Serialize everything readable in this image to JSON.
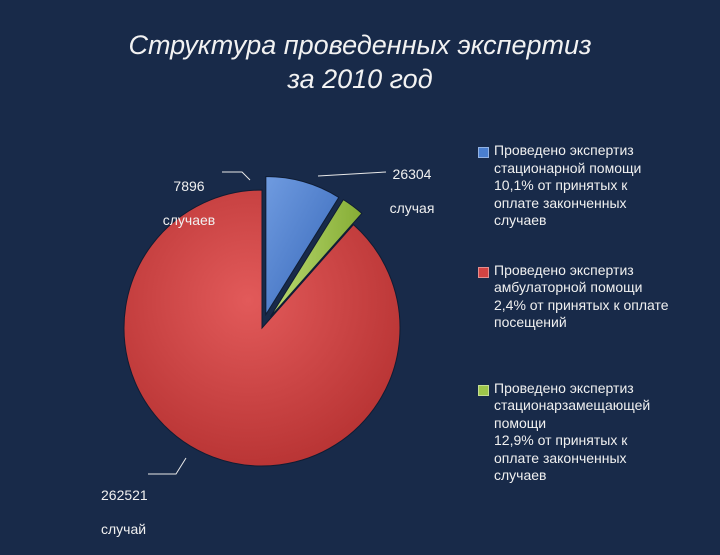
{
  "title_line1": "Структура проведенных экспертиз",
  "title_line2": "за 2010 год",
  "colors": {
    "background": "#182a49",
    "stationary": "#4a7fd0",
    "ambulatory": "#d24343",
    "replacement": "#9ec64a"
  },
  "chart_data": {
    "type": "pie",
    "title": "Структура проведенных экспертиз за 2010 год",
    "series": [
      {
        "name": "Проведено экспертиз стационарной помощи 10,1% от принятых к оплате законченных случаев",
        "value": 26304,
        "label_number": "26304",
        "label_unit": "случая",
        "color": "#4a7fd0",
        "exploded": true
      },
      {
        "name": "Проведено экспертиз амбулаторной помощи 2,4% от принятых  к оплате посещений",
        "value": 262521,
        "label_number": "262521",
        "label_unit": "случай",
        "color": "#d24343",
        "exploded": false
      },
      {
        "name": "Проведено экспертиз стационарзамещающей помощи 12,9% от принятых к оплате законченных случаев",
        "value": 7896,
        "label_number": "7896",
        "label_unit": "случаев",
        "color": "#9ec64a",
        "exploded": true
      }
    ],
    "legend": [
      "Проведено экспертиз\nстационарной помощи\n10,1% от принятых к\nоплате законченных\nслучаев",
      "Проведено экспертиз\nамбулаторной помощи\n2,4% от принятых  к оплате\nпосещений",
      "Проведено экспертиз\nстационарзамещающей\nпомощи\n12,9% от принятых к\nоплате законченных\nслучаев"
    ],
    "legend_position": "right"
  }
}
